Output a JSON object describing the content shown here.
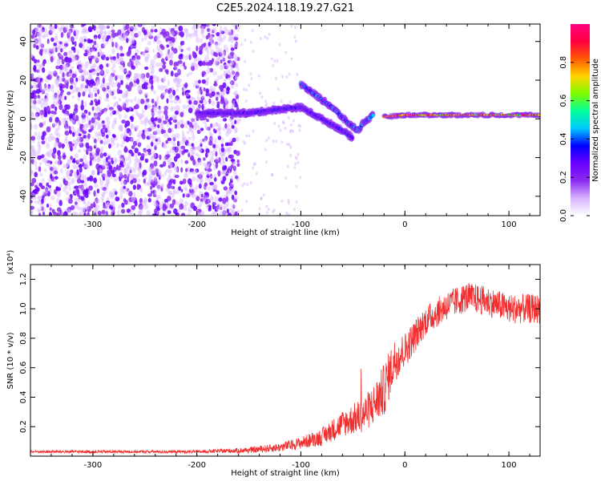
{
  "title": "C2E5.2024.118.19.27.G21",
  "colors": {
    "snr_line": "#f03030",
    "colormap": [
      "#ffffff",
      "#d8b4fe",
      "#8b2cf0",
      "#6a00ff",
      "#0000ff",
      "#00c8ff",
      "#00ff9c",
      "#7cfc00",
      "#ffd400",
      "#ff5a00",
      "#ff0040",
      "#ff0080"
    ]
  },
  "chart_data": [
    {
      "type": "heatmap",
      "name": "spectrogram",
      "xlabel": "Height of straight line (km)",
      "ylabel": "Frequency (Hz)",
      "xlim": [
        -360,
        130
      ],
      "ylim": [
        -50,
        49
      ],
      "xticks": [
        -300,
        -200,
        -100,
        0,
        100
      ],
      "xtick_labels": [
        "-300",
        "-200",
        "-100",
        "0",
        "100"
      ],
      "yticks": [
        -40,
        -20,
        0,
        20,
        40
      ],
      "ytick_labels": [
        "-40",
        "-20",
        "0",
        "20",
        "40"
      ],
      "colorbar": {
        "label": "Normalized spectral amplitude",
        "range": [
          0,
          1
        ],
        "ticks": [
          0.0,
          0.2,
          0.4,
          0.6,
          0.8
        ],
        "tick_labels": [
          "0.0",
          "0.2",
          "0.4",
          "0.6",
          "0.8"
        ]
      },
      "features": [
        {
          "kind": "noise",
          "x": [
            -360,
            -160
          ],
          "amplitude": 0.25
        },
        {
          "kind": "band",
          "points": [
            [
              -200,
              3
            ],
            [
              -150,
              3
            ],
            [
              -120,
              5
            ],
            [
              -100,
              6
            ],
            [
              -80,
              0
            ],
            [
              -60,
              -6
            ],
            [
              -50,
              -10
            ]
          ],
          "amplitude": 0.35
        },
        {
          "kind": "band",
          "points": [
            [
              -100,
              18
            ],
            [
              -85,
              12
            ],
            [
              -70,
              6
            ],
            [
              -55,
              -2
            ],
            [
              -45,
              -6
            ],
            [
              -40,
              -2
            ],
            [
              -30,
              2
            ]
          ],
          "amplitude": 0.45
        },
        {
          "kind": "line",
          "points": [
            [
              -20,
              1
            ],
            [
              0,
              2
            ],
            [
              130,
              2
            ]
          ],
          "amplitude": 0.9
        }
      ]
    },
    {
      "type": "line",
      "name": "snr",
      "xlabel": "Height of straight line (km)",
      "ylabel": "SNR (10 * v/v)",
      "multiplier": "(x10⁴)",
      "xlim": [
        -360,
        130
      ],
      "ylim": [
        0,
        1.3
      ],
      "xticks": [
        -300,
        -200,
        -100,
        0,
        100
      ],
      "xtick_labels": [
        "-300",
        "-200",
        "-100",
        "0",
        "100"
      ],
      "yticks": [
        0.2,
        0.4,
        0.6,
        0.8,
        1.0,
        1.2
      ],
      "ytick_labels": [
        "0.2",
        "0.4",
        "0.6",
        "0.8",
        "1.0",
        "1.2"
      ],
      "x": [
        -360,
        -300,
        -200,
        -150,
        -120,
        -100,
        -80,
        -60,
        -40,
        -30,
        -20,
        -10,
        0,
        20,
        40,
        60,
        80,
        100,
        130
      ],
      "y": [
        0.03,
        0.03,
        0.03,
        0.04,
        0.06,
        0.09,
        0.13,
        0.22,
        0.28,
        0.35,
        0.45,
        0.65,
        0.72,
        0.92,
        1.02,
        1.08,
        1.05,
        1.0,
        1.0
      ],
      "noise": [
        0.01,
        0.01,
        0.01,
        0.02,
        0.03,
        0.04,
        0.06,
        0.09,
        0.12,
        0.14,
        0.18,
        0.15,
        0.12,
        0.1,
        0.1,
        0.1,
        0.1,
        0.1,
        0.1
      ]
    }
  ]
}
